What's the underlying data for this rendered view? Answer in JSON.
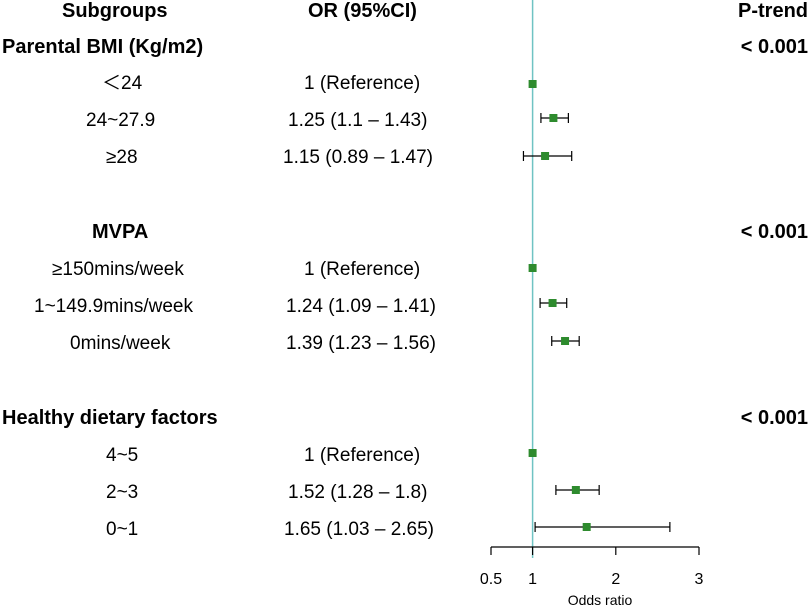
{
  "header": {
    "subgroups": "Subgroups",
    "or_ci": "OR (95%CI)",
    "p_trend": "P-trend"
  },
  "groups": [
    {
      "title": "Parental BMI (Kg/m2)",
      "p_trend": "< 0.001",
      "rows": [
        {
          "label": "＜24",
          "or_text": "1 (Reference)"
        },
        {
          "label": "24~27.9",
          "or_text": "1.25 (1.1 – 1.43)"
        },
        {
          "label": "≥28",
          "or_text": "1.15 (0.89 – 1.47)"
        }
      ]
    },
    {
      "title": "MVPA",
      "p_trend": "< 0.001",
      "rows": [
        {
          "label": "≥150mins/week",
          "or_text": "1 (Reference)"
        },
        {
          "label": "1~149.9mins/week",
          "or_text": "1.24 (1.09 – 1.41)"
        },
        {
          "label": "0mins/week",
          "or_text": "1.39 (1.23 – 1.56)"
        }
      ]
    },
    {
      "title": "Healthy dietary factors",
      "p_trend": "< 0.001",
      "rows": [
        {
          "label": "4~5",
          "or_text": "1 (Reference)"
        },
        {
          "label": "2~3",
          "or_text": "1.52 (1.28 – 1.8)"
        },
        {
          "label": "0~1",
          "or_text": "1.65 (1.03 – 2.65)"
        }
      ]
    }
  ],
  "chart_data": {
    "type": "forest",
    "xlabel": "Odds ratio",
    "xlim": [
      0.5,
      3
    ],
    "ticks": [
      0.5,
      1,
      2,
      3
    ],
    "tick_labels": [
      "0.5",
      "1",
      "2",
      "3"
    ],
    "reference_line": 1,
    "colors": {
      "point": "#2e8b2e",
      "reference_line": "#6fc3c3",
      "ci": "#000000"
    },
    "points": [
      {
        "group": "Parental BMI (Kg/m2)",
        "label": "＜24",
        "or": 1.0,
        "lo": 1.0,
        "hi": 1.0
      },
      {
        "group": "Parental BMI (Kg/m2)",
        "label": "24~27.9",
        "or": 1.25,
        "lo": 1.1,
        "hi": 1.43
      },
      {
        "group": "Parental BMI (Kg/m2)",
        "label": "≥28",
        "or": 1.15,
        "lo": 0.89,
        "hi": 1.47
      },
      {
        "group": "MVPA",
        "label": "≥150mins/week",
        "or": 1.0,
        "lo": 1.0,
        "hi": 1.0
      },
      {
        "group": "MVPA",
        "label": "1~149.9mins/week",
        "or": 1.24,
        "lo": 1.09,
        "hi": 1.41
      },
      {
        "group": "MVPA",
        "label": "0mins/week",
        "or": 1.39,
        "lo": 1.23,
        "hi": 1.56
      },
      {
        "group": "Healthy dietary factors",
        "label": "4~5",
        "or": 1.0,
        "lo": 1.0,
        "hi": 1.0
      },
      {
        "group": "Healthy dietary factors",
        "label": "2~3",
        "or": 1.52,
        "lo": 1.28,
        "hi": 1.8
      },
      {
        "group": "Healthy dietary factors",
        "label": "0~1",
        "or": 1.65,
        "lo": 1.03,
        "hi": 2.65
      }
    ]
  }
}
